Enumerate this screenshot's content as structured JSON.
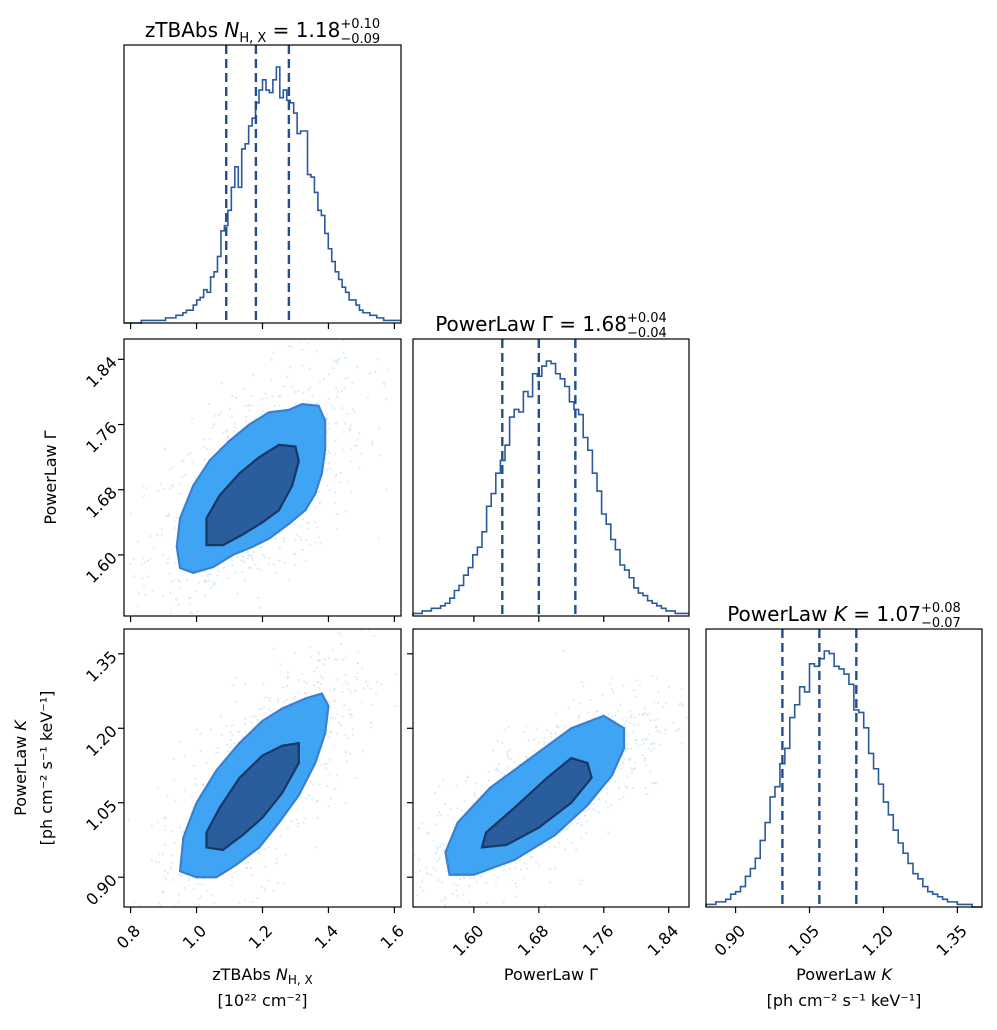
{
  "chart_data": {
    "type": "corner",
    "colors": {
      "histogram_line": "#2a5a9e",
      "quantile_line": "#1f4f8f",
      "scatter_points": "#b9dcf8",
      "contour_outer_fill": "#3fa4f4",
      "contour_outer_edge": "#3a80d2",
      "contour_inner_fill": "#2a5d9e",
      "contour_inner_edge": "#173765"
    },
    "parameters": [
      {
        "id": "nh",
        "range": [
          0.78,
          1.62
        ],
        "ticks": [
          0.8,
          1.0,
          1.2,
          1.4,
          1.6
        ],
        "tick_labels": [
          "0.8",
          "1.0",
          "1.2",
          "1.4",
          "1.6"
        ],
        "axis_label": "zTBAbs N_H,X",
        "axis_label_main": "zTBAbs ",
        "axis_label_symbol": "N",
        "axis_label_sub": "H, X",
        "axis_label_unit": "[10²² cm⁻²]",
        "title_prefix": "zTBAbs ",
        "title_symbol": "N",
        "title_sub": "H, X",
        "title_eq": " = 1.18",
        "title_plus": "+0.10",
        "title_minus": "−0.09",
        "median": 1.18,
        "q16": 1.09,
        "q84": 1.28
      },
      {
        "id": "gamma",
        "range": [
          1.525,
          1.865
        ],
        "ticks": [
          1.6,
          1.68,
          1.76,
          1.84
        ],
        "tick_labels": [
          "1.60",
          "1.68",
          "1.76",
          "1.84"
        ],
        "axis_label": "PowerLaw Γ",
        "axis_label_unit": "",
        "title_prefix": "PowerLaw Γ",
        "title_eq": " = 1.68",
        "title_plus": "+0.04",
        "title_minus": "−0.04",
        "median": 1.68,
        "q16": 1.635,
        "q84": 1.725
      },
      {
        "id": "k",
        "range": [
          0.84,
          1.4
        ],
        "ticks": [
          0.9,
          1.05,
          1.2,
          1.35
        ],
        "tick_labels": [
          "0.90",
          "1.05",
          "1.20",
          "1.35"
        ],
        "axis_label": "PowerLaw K",
        "axis_label_main": "PowerLaw ",
        "axis_label_symbol": "K",
        "axis_label_unit": "[ph cm⁻² s⁻¹ keV⁻¹]",
        "title_prefix": "PowerLaw ",
        "title_symbol": "K",
        "title_eq": " = 1.07",
        "title_plus": "+0.08",
        "title_minus": "−0.07",
        "median": 1.07,
        "q16": 0.995,
        "q84": 1.145
      }
    ],
    "histograms": {
      "nh": {
        "bins": [
          0.78,
          1.62
        ],
        "counts": [
          0,
          0,
          0,
          0,
          0,
          0.01,
          0.01,
          0.01,
          0.01,
          0.01,
          0.01,
          0.01,
          0.02,
          0.02,
          0.02,
          0.03,
          0.03,
          0.04,
          0.05,
          0.05,
          0.07,
          0.09,
          0.1,
          0.13,
          0.12,
          0.18,
          0.2,
          0.26,
          0.36,
          0.38,
          0.44,
          0.53,
          0.61,
          0.53,
          0.68,
          0.7,
          0.77,
          0.8,
          0.86,
          0.91,
          0.95,
          0.91,
          0.9,
          0.95,
          1.0,
          0.88,
          0.91,
          0.87,
          0.86,
          0.82,
          0.74,
          0.75,
          0.75,
          0.58,
          0.57,
          0.51,
          0.44,
          0.42,
          0.35,
          0.29,
          0.24,
          0.2,
          0.17,
          0.14,
          0.12,
          0.09,
          0.09,
          0.07,
          0.05,
          0.04,
          0.04,
          0.03,
          0.03,
          0.02,
          0.02,
          0.01,
          0.01,
          0.01,
          0.01,
          0.01
        ]
      },
      "gamma": {
        "bins": [
          1.525,
          1.865
        ],
        "counts": [
          0.01,
          0.01,
          0.02,
          0.02,
          0.03,
          0.03,
          0.04,
          0.05,
          0.07,
          0.1,
          0.12,
          0.16,
          0.19,
          0.24,
          0.27,
          0.33,
          0.43,
          0.48,
          0.56,
          0.61,
          0.67,
          0.78,
          0.81,
          0.8,
          0.88,
          0.86,
          0.95,
          0.94,
          0.98,
          1.0,
          0.99,
          0.95,
          0.93,
          0.9,
          0.84,
          0.81,
          0.79,
          0.7,
          0.65,
          0.56,
          0.49,
          0.4,
          0.36,
          0.3,
          0.26,
          0.2,
          0.18,
          0.15,
          0.11,
          0.09,
          0.08,
          0.06,
          0.05,
          0.04,
          0.03,
          0.02,
          0.02,
          0.01,
          0.01,
          0.01
        ]
      },
      "k": {
        "bins": [
          0.84,
          1.4
        ],
        "counts": [
          0.01,
          0.01,
          0.02,
          0.02,
          0.03,
          0.05,
          0.06,
          0.08,
          0.12,
          0.15,
          0.19,
          0.26,
          0.33,
          0.43,
          0.47,
          0.56,
          0.62,
          0.74,
          0.79,
          0.86,
          0.84,
          0.95,
          0.94,
          0.97,
          1.0,
          0.99,
          0.94,
          0.93,
          0.91,
          0.87,
          0.77,
          0.76,
          0.7,
          0.6,
          0.54,
          0.48,
          0.41,
          0.36,
          0.3,
          0.25,
          0.21,
          0.17,
          0.13,
          0.11,
          0.08,
          0.06,
          0.05,
          0.04,
          0.03,
          0.02,
          0.02,
          0.01,
          0.01,
          0.01,
          0.0,
          0.0
        ]
      }
    },
    "contours": [
      {
        "x": "nh",
        "y": "gamma",
        "outer": [
          [
            0.95,
            1.584
          ],
          [
            0.99,
            1.578
          ],
          [
            1.05,
            1.585
          ],
          [
            1.11,
            1.6
          ],
          [
            1.17,
            1.61
          ],
          [
            1.22,
            1.62
          ],
          [
            1.28,
            1.638
          ],
          [
            1.33,
            1.655
          ],
          [
            1.36,
            1.675
          ],
          [
            1.38,
            1.7
          ],
          [
            1.39,
            1.73
          ],
          [
            1.39,
            1.765
          ],
          [
            1.37,
            1.783
          ],
          [
            1.32,
            1.785
          ],
          [
            1.28,
            1.778
          ],
          [
            1.22,
            1.775
          ],
          [
            1.16,
            1.76
          ],
          [
            1.1,
            1.74
          ],
          [
            1.04,
            1.716
          ],
          [
            0.99,
            1.685
          ],
          [
            0.95,
            1.645
          ],
          [
            0.94,
            1.61
          ]
        ],
        "inner": [
          [
            1.03,
            1.612
          ],
          [
            1.08,
            1.612
          ],
          [
            1.14,
            1.625
          ],
          [
            1.2,
            1.64
          ],
          [
            1.25,
            1.655
          ],
          [
            1.29,
            1.685
          ],
          [
            1.31,
            1.715
          ],
          [
            1.3,
            1.733
          ],
          [
            1.25,
            1.735
          ],
          [
            1.19,
            1.72
          ],
          [
            1.13,
            1.7
          ],
          [
            1.07,
            1.673
          ],
          [
            1.03,
            1.645
          ]
        ]
      },
      {
        "x": "nh",
        "y": "k",
        "outer": [
          [
            0.95,
            0.912
          ],
          [
            1.0,
            0.9
          ],
          [
            1.06,
            0.9
          ],
          [
            1.12,
            0.925
          ],
          [
            1.19,
            0.96
          ],
          [
            1.25,
            1.01
          ],
          [
            1.31,
            1.065
          ],
          [
            1.36,
            1.13
          ],
          [
            1.39,
            1.19
          ],
          [
            1.4,
            1.245
          ],
          [
            1.38,
            1.27
          ],
          [
            1.33,
            1.26
          ],
          [
            1.26,
            1.24
          ],
          [
            1.2,
            1.215
          ],
          [
            1.13,
            1.17
          ],
          [
            1.06,
            1.115
          ],
          [
            1.0,
            1.05
          ],
          [
            0.96,
            0.98
          ]
        ],
        "inner": [
          [
            1.03,
            0.96
          ],
          [
            1.08,
            0.955
          ],
          [
            1.14,
            0.985
          ],
          [
            1.2,
            1.02
          ],
          [
            1.26,
            1.07
          ],
          [
            1.31,
            1.13
          ],
          [
            1.31,
            1.17
          ],
          [
            1.26,
            1.165
          ],
          [
            1.2,
            1.145
          ],
          [
            1.13,
            1.1
          ],
          [
            1.07,
            1.04
          ],
          [
            1.03,
            0.99
          ]
        ]
      },
      {
        "x": "gamma",
        "y": "k",
        "outer": [
          [
            1.57,
            0.905
          ],
          [
            1.6,
            0.905
          ],
          [
            1.65,
            0.935
          ],
          [
            1.7,
            0.985
          ],
          [
            1.74,
            1.045
          ],
          [
            1.77,
            1.105
          ],
          [
            1.785,
            1.16
          ],
          [
            1.785,
            1.2
          ],
          [
            1.76,
            1.225
          ],
          [
            1.72,
            1.2
          ],
          [
            1.67,
            1.14
          ],
          [
            1.62,
            1.08
          ],
          [
            1.58,
            1.01
          ],
          [
            1.565,
            0.95
          ]
        ],
        "inner": [
          [
            1.61,
            0.96
          ],
          [
            1.64,
            0.965
          ],
          [
            1.68,
            1.0
          ],
          [
            1.72,
            1.05
          ],
          [
            1.745,
            1.1
          ],
          [
            1.74,
            1.13
          ],
          [
            1.72,
            1.14
          ],
          [
            1.69,
            1.1
          ],
          [
            1.65,
            1.04
          ],
          [
            1.615,
            0.99
          ]
        ]
      }
    ]
  }
}
